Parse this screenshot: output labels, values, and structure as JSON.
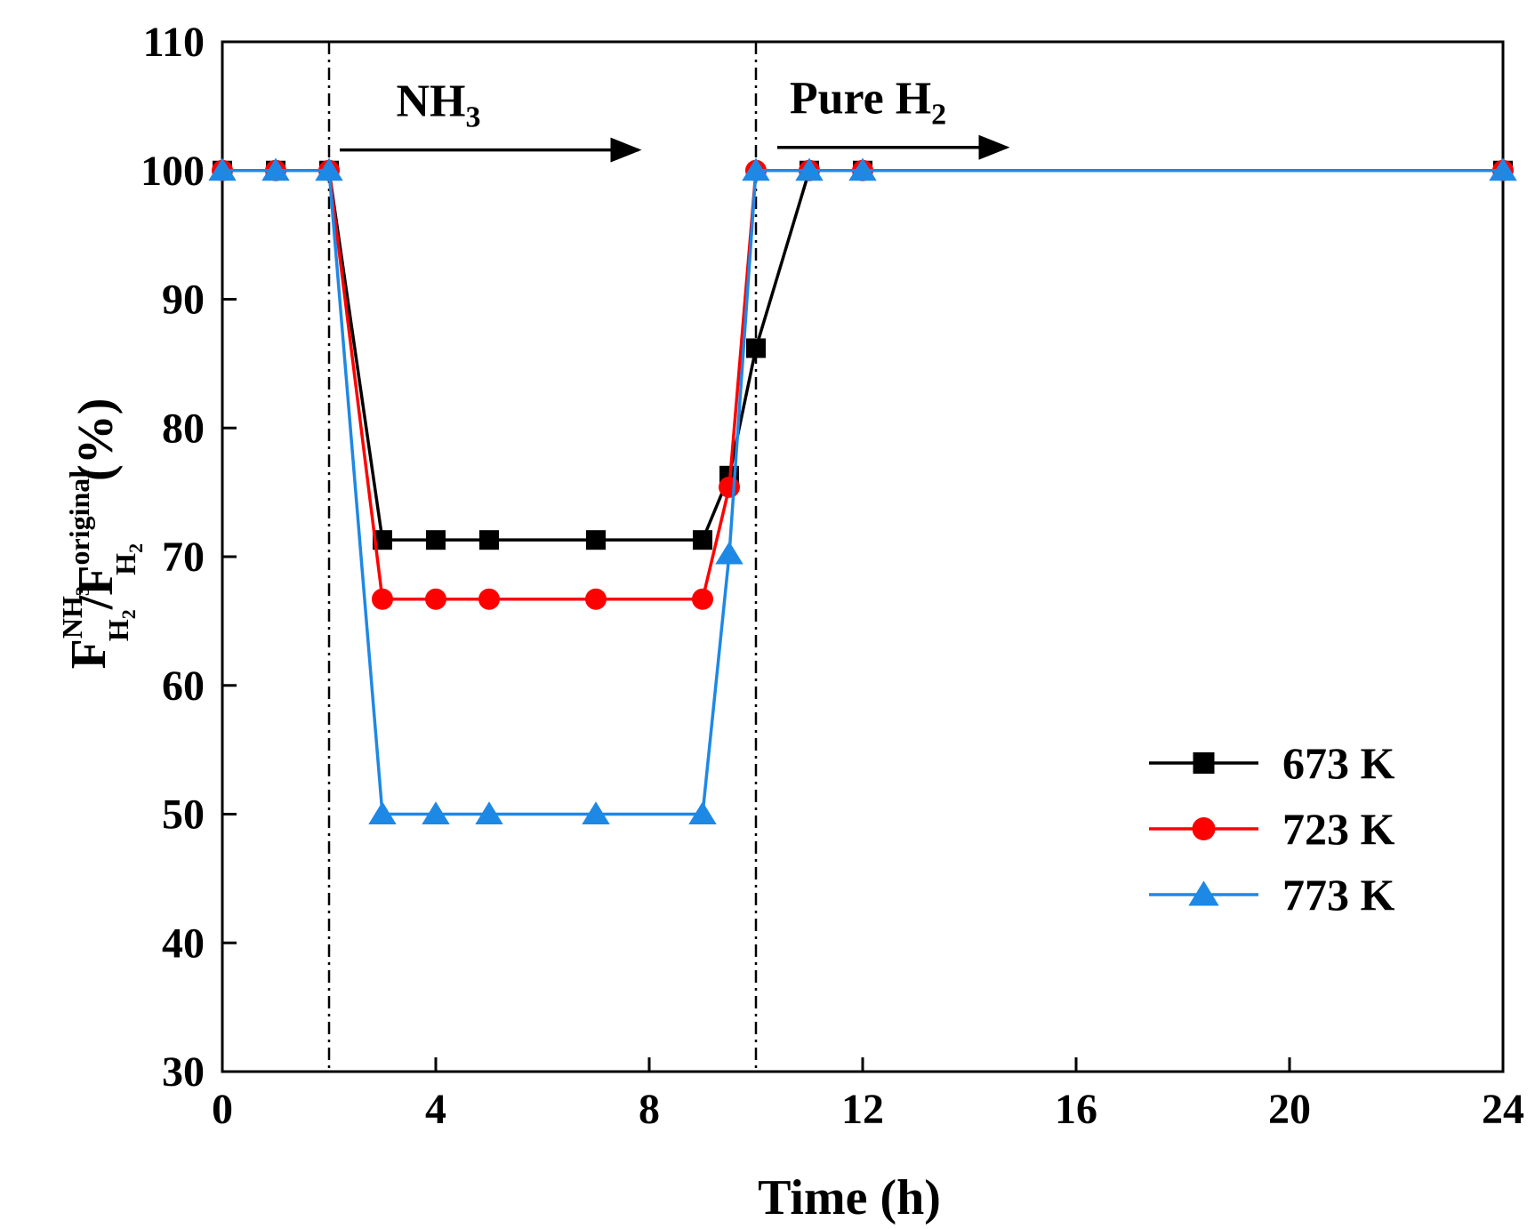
{
  "chart_data": {
    "type": "line",
    "xlabel": "Time (h)",
    "ylabel": {
      "main": "F",
      "sup1": "NH",
      "sup1_sub": "3",
      "sub1": "H",
      "sub1_sub": "2",
      "slash": "/F",
      "sup2": "original",
      "sub2": "H",
      "sub2_sub": "2",
      "unit": "(%)"
    },
    "xlim": [
      0,
      24
    ],
    "ylim": [
      30,
      110
    ],
    "xticks": [
      0,
      4,
      8,
      12,
      16,
      20,
      24
    ],
    "yticks": [
      30,
      40,
      50,
      60,
      70,
      80,
      90,
      100,
      110
    ],
    "grid": false,
    "legend_position": "bottom-right",
    "vlines": [
      2,
      10
    ],
    "annotations": [
      {
        "main": "NH",
        "sub": "3",
        "x_from": 2.2,
        "x_to": 7.9,
        "y": 101.6
      },
      {
        "main": "Pure H",
        "sub": "2",
        "x_from": 10.4,
        "x_to": 14.8,
        "y": 101.8
      }
    ],
    "series": [
      {
        "name": "673 K",
        "color": "#000000",
        "marker": "square",
        "x": [
          0,
          1,
          2,
          3,
          4,
          5,
          7,
          9,
          9.5,
          10,
          11,
          12,
          24
        ],
        "y": [
          100,
          100,
          100,
          71.3,
          71.3,
          71.3,
          71.3,
          71.3,
          76.3,
          86.2,
          100,
          100,
          100
        ]
      },
      {
        "name": "723 K",
        "color": "#ff0000",
        "marker": "circle",
        "x": [
          0,
          1,
          2,
          3,
          4,
          5,
          7,
          9,
          9.5,
          10,
          11,
          12,
          24
        ],
        "y": [
          100,
          100,
          100,
          66.7,
          66.7,
          66.7,
          66.7,
          66.7,
          75.4,
          100,
          100,
          100,
          100
        ]
      },
      {
        "name": "773 K",
        "color": "#1e88e5",
        "marker": "triangle",
        "x": [
          0,
          1,
          2,
          3,
          4,
          5,
          7,
          9,
          9.5,
          10,
          11,
          12,
          24
        ],
        "y": [
          100,
          100,
          100,
          50,
          50,
          50,
          50,
          50,
          70.2,
          100,
          100,
          100,
          100
        ]
      }
    ]
  }
}
